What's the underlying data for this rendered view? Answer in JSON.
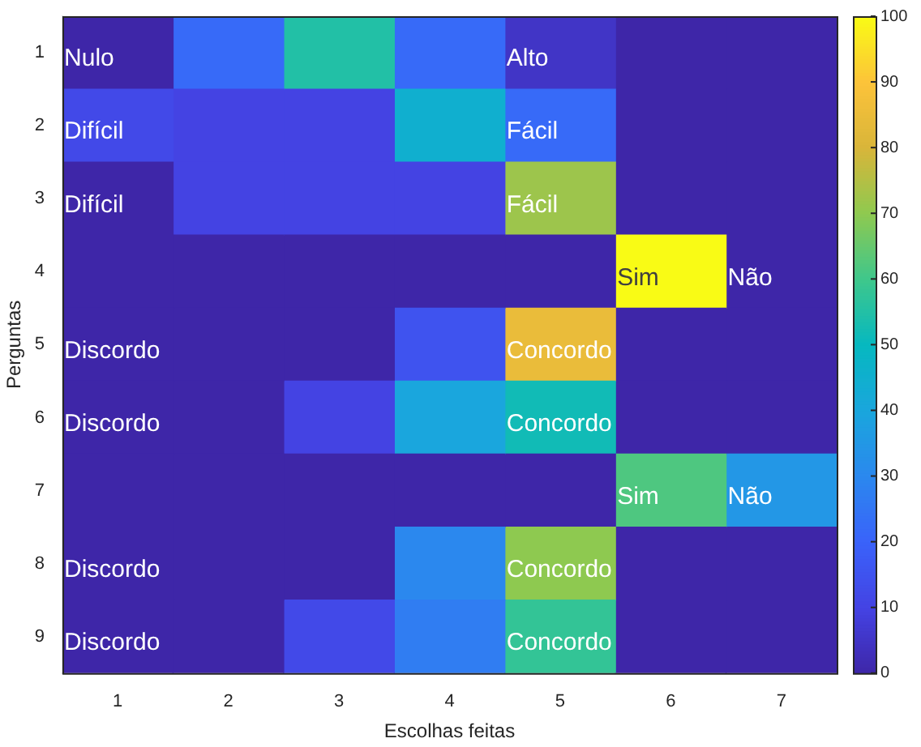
{
  "chart_data": {
    "type": "heatmap",
    "xlabel": "Escolhas feitas",
    "ylabel": "Perguntas",
    "categories": [
      "1",
      "2",
      "3",
      "4",
      "5",
      "6",
      "7"
    ],
    "y_categories": [
      "1",
      "2",
      "3",
      "4",
      "5",
      "6",
      "7",
      "8",
      "9"
    ],
    "cells": [
      [
        0,
        22,
        55,
        22,
        5,
        0,
        0
      ],
      [
        12,
        10,
        10,
        45,
        22,
        0,
        0
      ],
      [
        0,
        10,
        10,
        10,
        72,
        0,
        0
      ],
      [
        0,
        0,
        0,
        0,
        0,
        100,
        0
      ],
      [
        0,
        0,
        0,
        15,
        85,
        0,
        0
      ],
      [
        0,
        0,
        10,
        40,
        52,
        0,
        0
      ],
      [
        0,
        0,
        0,
        0,
        0,
        62,
        35
      ],
      [
        0,
        0,
        0,
        30,
        70,
        0,
        0
      ],
      [
        0,
        0,
        12,
        27,
        58,
        0,
        0
      ]
    ],
    "cell_labels": [
      [
        "Nulo",
        null,
        null,
        null,
        "Alto",
        null,
        null
      ],
      [
        "Difícil",
        null,
        null,
        null,
        "Fácil",
        null,
        null
      ],
      [
        "Difícil",
        null,
        null,
        null,
        "Fácil",
        null,
        null
      ],
      [
        null,
        null,
        null,
        null,
        null,
        "Sim",
        "Não"
      ],
      [
        "Discordo",
        null,
        null,
        null,
        "Concordo",
        null,
        null
      ],
      [
        "Discordo",
        null,
        null,
        null,
        "Concordo",
        null,
        null
      ],
      [
        null,
        null,
        null,
        null,
        null,
        "Sim",
        "Não"
      ],
      [
        "Discordo",
        null,
        null,
        null,
        "Concordo",
        null,
        null
      ],
      [
        "Discordo",
        null,
        null,
        null,
        "Concordo",
        null,
        null
      ]
    ],
    "clim": [
      0,
      100
    ],
    "cticks": [
      0,
      10,
      20,
      30,
      40,
      50,
      60,
      70,
      80,
      90,
      100
    ]
  }
}
